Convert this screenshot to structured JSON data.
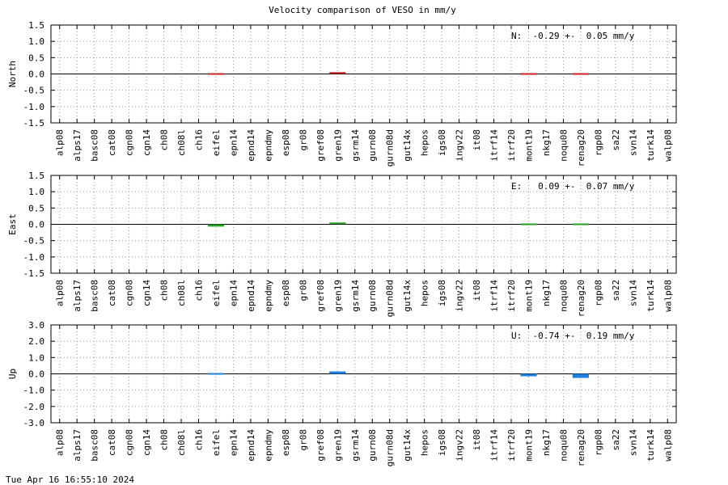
{
  "title": "Velocity comparison of VESO in mm/y",
  "footer": "Tue Apr 16 16:55:10 2024",
  "chart_data": [
    {
      "type": "bar",
      "ylabel": "North",
      "annotation": "N:  -0.29 +-  0.05 mm/y",
      "color": "#cc2222",
      "grid": true,
      "categories": [
        "alp08",
        "alps17",
        "basc08",
        "cat08",
        "cgn08",
        "cgn14",
        "ch08",
        "ch08l",
        "ch16",
        "eifel",
        "epn14",
        "epnd14",
        "epndmy",
        "esp08",
        "gr08",
        "gref08",
        "gren19",
        "gsrm14",
        "gurn08",
        "gurn08d",
        "gut14x",
        "hepos",
        "igs08",
        "ingv22",
        "it08",
        "itrf14",
        "itrf20",
        "mont19",
        "nkg17",
        "noqu08",
        "renag20",
        "rgp08",
        "sa22",
        "svn14",
        "turk14",
        "walp08"
      ],
      "values": [
        null,
        null,
        null,
        null,
        null,
        null,
        null,
        null,
        null,
        -0.02,
        null,
        null,
        null,
        null,
        null,
        null,
        0.03,
        null,
        null,
        null,
        null,
        null,
        null,
        null,
        null,
        null,
        null,
        -0.03,
        null,
        null,
        -0.02,
        null,
        null,
        null,
        null,
        null
      ],
      "ylim": [
        -1.5,
        1.5
      ],
      "yticks": [
        1.5,
        {
          "value": 1.0,
          "label": "1.0"
        },
        0.5,
        {
          "value": 0,
          "label": "0.0"
        },
        -0.5,
        {
          "value": -1.0,
          "label": "-1.0"
        },
        -1.5
      ]
    },
    {
      "type": "bar",
      "ylabel": "East",
      "annotation": "E:   0.09 +-  0.07 mm/y",
      "color": "#22a022",
      "grid": true,
      "categories": [
        "alp08",
        "alps17",
        "basc08",
        "cat08",
        "cgn08",
        "cgn14",
        "ch08",
        "ch08l",
        "ch16",
        "eifel",
        "epn14",
        "epnd14",
        "epndmy",
        "esp08",
        "gr08",
        "gref08",
        "gren19",
        "gsrm14",
        "gurn08",
        "gurn08d",
        "gut14x",
        "hepos",
        "igs08",
        "ingv22",
        "it08",
        "itrf14",
        "itrf20",
        "mont19",
        "nkg17",
        "noqu08",
        "renag20",
        "rgp08",
        "sa22",
        "svn14",
        "turk14",
        "walp08"
      ],
      "values": [
        null,
        null,
        null,
        null,
        null,
        null,
        null,
        null,
        null,
        -0.07,
        null,
        null,
        null,
        null,
        null,
        null,
        0.03,
        null,
        null,
        null,
        null,
        null,
        null,
        null,
        null,
        null,
        null,
        -0.02,
        null,
        null,
        -0.04,
        null,
        null,
        null,
        null,
        null
      ],
      "ylim": [
        -1.5,
        1.5
      ],
      "yticks": [
        1.5,
        {
          "value": 1.0,
          "label": "1.0"
        },
        0.5,
        {
          "value": 0,
          "label": "0.0"
        },
        -0.5,
        {
          "value": -1.0,
          "label": "-1.0"
        },
        -1.5
      ]
    },
    {
      "type": "bar",
      "ylabel": "Up",
      "annotation": "U:  -0.74 +-  0.19 mm/y",
      "color": "#1e80e0",
      "grid": true,
      "categories": [
        "alp08",
        "alps17",
        "basc08",
        "cat08",
        "cgn08",
        "cgn14",
        "ch08",
        "ch08l",
        "ch16",
        "eifel",
        "epn14",
        "epnd14",
        "epndmy",
        "esp08",
        "gr08",
        "gref08",
        "gren19",
        "gsrm14",
        "gurn08",
        "gurn08d",
        "gut14x",
        "hepos",
        "igs08",
        "ingv22",
        "it08",
        "itrf14",
        "itrf20",
        "mont19",
        "nkg17",
        "noqu08",
        "renag20",
        "rgp08",
        "sa22",
        "svn14",
        "turk14",
        "walp08"
      ],
      "values": [
        null,
        null,
        null,
        null,
        null,
        null,
        null,
        null,
        null,
        -0.05,
        null,
        null,
        null,
        null,
        null,
        null,
        0.15,
        null,
        null,
        null,
        null,
        null,
        null,
        null,
        null,
        null,
        null,
        -0.15,
        null,
        null,
        -0.25,
        null,
        null,
        null,
        null,
        null
      ],
      "ylim": [
        -3,
        3
      ],
      "yticks": [
        {
          "value": 3,
          "label": "3.0"
        },
        {
          "value": 2,
          "label": "2.0"
        },
        {
          "value": 1,
          "label": "1.0"
        },
        {
          "value": 0,
          "label": "0.0"
        },
        {
          "value": -1,
          "label": "-1.0"
        },
        {
          "value": -2,
          "label": "-2.0"
        },
        {
          "value": -3,
          "label": "-3.0"
        }
      ]
    }
  ]
}
